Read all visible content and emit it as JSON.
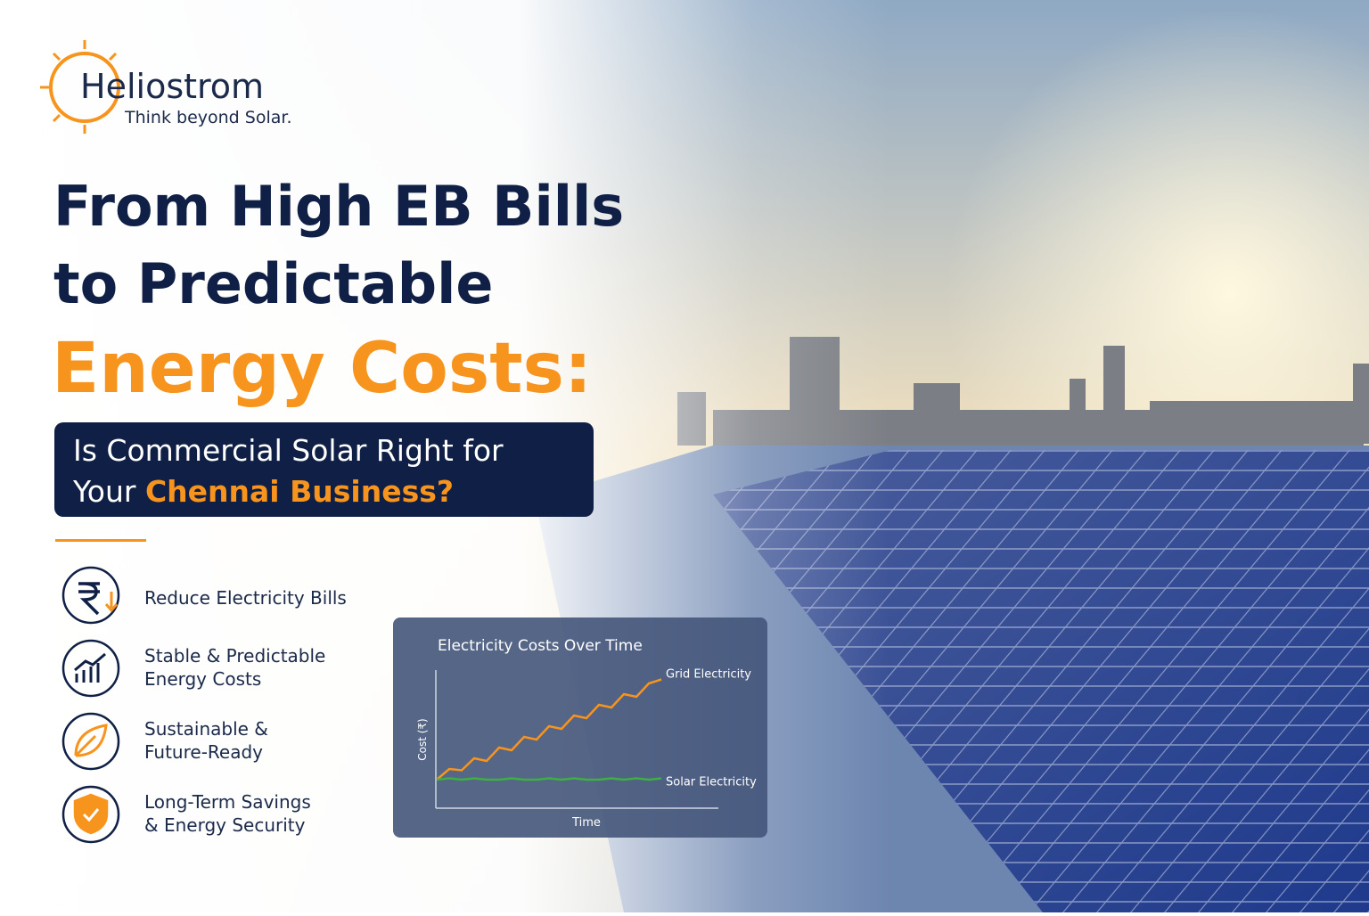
{
  "brand": {
    "name": "Heliostrom",
    "tagline": "Think beyond Solar."
  },
  "headline": {
    "line1": "From High EB Bills",
    "line2": "to Predictable",
    "line3": "Energy Costs:"
  },
  "subheadline": {
    "text": "Is Commercial Solar Right for",
    "text2": "Your",
    "highlight": "Chennai Business?"
  },
  "benefits": [
    {
      "line1": "Reduce Electricity Bills"
    },
    {
      "line1": "Stable & Predictable",
      "line2": "Energy Costs"
    },
    {
      "line1": "Sustainable &",
      "line2": "Future-Ready"
    },
    {
      "line1": "Long-Term Savings",
      "line2": "& Energy Security"
    }
  ],
  "chart_data": {
    "type": "line",
    "title": "Electricity Costs Over Time",
    "x_label": "Time",
    "y_label": "Cost (₹)",
    "ylim": [
      0,
      100
    ],
    "series": [
      {
        "name": "Grid Electricity",
        "color": "#f7941d",
        "values": [
          20,
          28,
          27,
          36,
          34,
          44,
          42,
          52,
          50,
          60,
          58,
          68,
          66,
          76,
          74,
          84,
          82,
          92,
          95
        ]
      },
      {
        "name": "Solar Electricity",
        "color": "#3cb043",
        "values": [
          20,
          21,
          20,
          21,
          20,
          20,
          21,
          20,
          20,
          21,
          20,
          21,
          20,
          20,
          21,
          20,
          21,
          20,
          21
        ]
      }
    ]
  }
}
